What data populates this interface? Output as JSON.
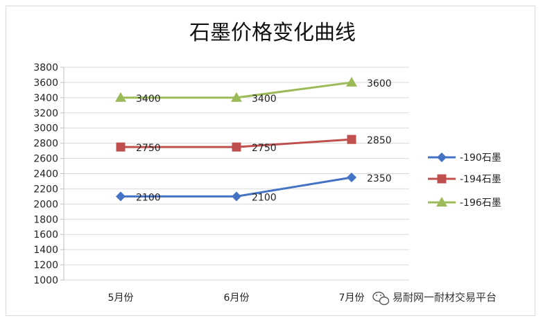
{
  "chart_data": {
    "type": "line",
    "title": "石墨价格变化曲线",
    "categories": [
      "5月份",
      "6月份",
      "7月份"
    ],
    "ylim": [
      1000,
      3800
    ],
    "ystep": 200,
    "grid": true,
    "legend_position": "right",
    "series": [
      {
        "name": "-190石墨",
        "values": [
          2100,
          2100,
          2350
        ],
        "color": "#4472c4",
        "marker": "diamond"
      },
      {
        "name": "-194石墨",
        "values": [
          2750,
          2750,
          2850
        ],
        "color": "#c0504d",
        "marker": "square"
      },
      {
        "name": "-196石墨",
        "values": [
          3400,
          3400,
          3600
        ],
        "color": "#9bbb59",
        "marker": "triangle"
      }
    ]
  },
  "watermark": {
    "text": "易耐网一耐材交易平台",
    "icon": "wechat-icon"
  }
}
